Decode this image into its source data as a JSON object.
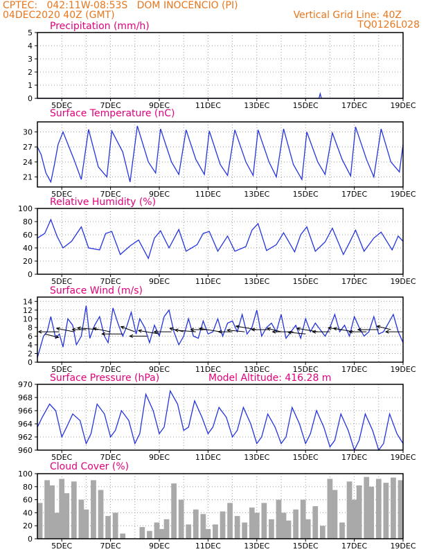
{
  "header": {
    "line1": "CPTEC:   042:11W-08:53S   DOM INOCENCIO (PI)",
    "line2": "04DEC2020 40Z (GMT)",
    "grid_note": "Vertical Grid Line: 40Z",
    "code": "TQ0126L028"
  },
  "colors": {
    "header": "#e8761c",
    "title": "#e0007a",
    "line": "#2233dd",
    "fill": "#a9a9a9"
  },
  "x_ticks": [
    "5DEC",
    "7DEC",
    "9DEC",
    "11DEC",
    "13DEC",
    "15DEC",
    "17DEC",
    "19DEC"
  ],
  "chart_data": [
    {
      "type": "line",
      "id": "precip",
      "title": "Precipitation (mm/h)",
      "ylim": [
        0,
        5
      ],
      "yticks": [
        "0",
        "1",
        "2",
        "3",
        "4",
        "5"
      ],
      "series": [
        {
          "x": [
            4,
            15.55,
            15.6,
            15.65,
            19
          ],
          "values": [
            0,
            0,
            0.35,
            0,
            0
          ]
        }
      ],
      "grid": "dotted"
    },
    {
      "type": "line",
      "id": "temp",
      "title": "Surface Temperature (nC)",
      "ylim": [
        19,
        32
      ],
      "yticks": [
        "21",
        "24",
        "27",
        "30"
      ],
      "series": [
        {
          "x": [
            4.0,
            4.15,
            4.35,
            4.55,
            4.7,
            4.85,
            5.05,
            5.5,
            5.8,
            6.1,
            6.5,
            6.85,
            7.05,
            7.5,
            7.8,
            8.1,
            8.55,
            8.85,
            9.05,
            9.5,
            9.8,
            10.1,
            10.5,
            10.85,
            11.05,
            11.5,
            11.8,
            12.1,
            12.55,
            12.85,
            13.05,
            13.5,
            13.8,
            14.1,
            14.5,
            14.85,
            15.05,
            15.5,
            15.8,
            16.1,
            16.5,
            16.85,
            17.05,
            17.5,
            17.8,
            18.1,
            18.5,
            18.85,
            19.0
          ],
          "values": [
            27.0,
            25.5,
            21.8,
            20.0,
            23.5,
            27.5,
            30.0,
            24.5,
            20.5,
            30.5,
            23.0,
            21.0,
            30.2,
            26.0,
            20.0,
            31.2,
            24.0,
            21.8,
            30.6,
            24.0,
            21.5,
            30.4,
            24.5,
            21.5,
            30.2,
            23.5,
            21.3,
            30.4,
            24.0,
            21.3,
            30.4,
            24.0,
            21.0,
            30.6,
            23.5,
            20.5,
            30.0,
            24.0,
            21.5,
            29.8,
            24.5,
            21.2,
            31.0,
            24.5,
            21.0,
            30.6,
            24.0,
            22.0,
            27.5
          ]
        }
      ],
      "grid": "dotted"
    },
    {
      "type": "line",
      "id": "rh",
      "title": "Relative Humidity (%)",
      "ylim": [
        0,
        100
      ],
      "yticks": [
        "0",
        "20",
        "40",
        "60",
        "80",
        "100"
      ],
      "series": [
        {
          "x": [
            4.0,
            4.3,
            4.55,
            4.8,
            5.05,
            5.4,
            5.8,
            6.1,
            6.55,
            6.8,
            7.05,
            7.4,
            7.8,
            8.15,
            8.55,
            8.8,
            9.05,
            9.4,
            9.8,
            10.1,
            10.55,
            10.8,
            11.05,
            11.4,
            11.8,
            12.1,
            12.55,
            12.8,
            13.05,
            13.4,
            13.8,
            14.1,
            14.55,
            14.8,
            15.05,
            15.4,
            15.8,
            16.1,
            16.55,
            16.8,
            17.05,
            17.4,
            17.8,
            18.1,
            18.55,
            18.8,
            19.0
          ],
          "values": [
            55,
            62,
            83,
            58,
            40,
            50,
            72,
            40,
            37,
            62,
            65,
            30,
            43,
            52,
            24,
            55,
            66,
            40,
            68,
            35,
            45,
            62,
            65,
            35,
            58,
            35,
            42,
            67,
            77,
            36,
            45,
            63,
            34,
            60,
            72,
            35,
            49,
            70,
            30,
            48,
            67,
            35,
            55,
            64,
            37,
            58,
            50
          ]
        }
      ],
      "grid": "dotted"
    },
    {
      "type": "line",
      "id": "wind",
      "title": "Surface Wind (m/s)",
      "ylim": [
        0,
        15
      ],
      "yticks": [
        "0",
        "2",
        "4",
        "6",
        "8",
        "10",
        "12",
        "14"
      ],
      "series": [
        {
          "x": [
            4.0,
            4.1,
            4.25,
            4.4,
            4.55,
            4.75,
            4.9,
            5.05,
            5.25,
            5.45,
            5.6,
            5.8,
            6.0,
            6.15,
            6.35,
            6.55,
            6.75,
            6.9,
            7.1,
            7.3,
            7.5,
            7.65,
            7.85,
            8.05,
            8.2,
            8.4,
            8.6,
            8.8,
            9.0,
            9.2,
            9.4,
            9.6,
            9.8,
            10.0,
            10.2,
            10.4,
            10.6,
            10.8,
            11.0,
            11.2,
            11.4,
            11.6,
            11.8,
            12.0,
            12.2,
            12.4,
            12.6,
            12.8,
            13.0,
            13.2,
            13.4,
            13.6,
            13.8,
            14.0,
            14.2,
            14.4,
            14.6,
            14.8,
            15.0,
            15.2,
            15.4,
            15.6,
            15.8,
            16.0,
            16.2,
            16.4,
            16.6,
            16.8,
            17.0,
            17.2,
            17.4,
            17.6,
            17.8,
            18.0,
            18.2,
            18.4,
            18.6,
            18.8,
            19.0
          ],
          "values": [
            1.0,
            3.0,
            6.0,
            7.0,
            10.5,
            5.5,
            6.5,
            3.5,
            10.0,
            8.5,
            4.0,
            6.0,
            13.0,
            5.5,
            8.5,
            10.5,
            6.0,
            4.5,
            12.5,
            9.0,
            6.0,
            8.0,
            11.5,
            6.5,
            10.0,
            8.0,
            4.5,
            8.5,
            6.0,
            10.5,
            12.0,
            7.0,
            4.0,
            6.0,
            10.0,
            6.0,
            5.5,
            9.5,
            6.5,
            7.0,
            10.0,
            6.0,
            9.0,
            9.5,
            7.0,
            11.0,
            6.5,
            8.0,
            12.0,
            6.0,
            8.0,
            9.0,
            7.0,
            11.0,
            5.5,
            7.0,
            8.5,
            5.5,
            10.0,
            7.0,
            9.0,
            7.5,
            6.0,
            8.0,
            11.0,
            7.0,
            8.5,
            6.0,
            10.5,
            8.0,
            6.0,
            7.0,
            10.5,
            6.5,
            7.0,
            9.0,
            11.0,
            7.0,
            4.5
          ]
        }
      ],
      "vectors": {
        "x": [
          4.3,
          4.9,
          5.5,
          6.0,
          6.5,
          7.0,
          7.5,
          8.0,
          8.5,
          9.0,
          9.5,
          10.0,
          10.5,
          11.0,
          11.5,
          12.0,
          12.5,
          13.0,
          13.5,
          14.0,
          14.5,
          15.0,
          15.5,
          16.0,
          16.5,
          17.0,
          17.5,
          18.0,
          18.5,
          19.0
        ],
        "u": [
          4,
          -6,
          -5,
          -4,
          -6,
          -5,
          -6,
          -4,
          -5,
          -6,
          -5,
          -4,
          -6,
          -5,
          -6,
          -4,
          -5,
          -6,
          -5,
          -4,
          -6,
          -5,
          -6,
          -5,
          -4,
          -6,
          -5,
          -6,
          -4,
          -5
        ],
        "v": [
          -1,
          0,
          1,
          0,
          0.5,
          1,
          0,
          1.5,
          0,
          1,
          0,
          1,
          0.5,
          0,
          1,
          0,
          0.5,
          1,
          0,
          1,
          0,
          0.5,
          1,
          0,
          0.5,
          1,
          0,
          0,
          1,
          0
        ],
        "at": [
          6.5,
          7.0,
          7.0,
          7.5,
          7.5,
          7.0,
          6.5,
          7.0,
          6.0,
          6.5,
          7.0,
          7.0,
          7.0,
          7.5,
          7.0,
          7.0,
          7.0,
          7.5,
          7.5,
          7.0,
          7.0,
          6.5,
          7.0,
          7.0,
          7.5,
          7.0,
          7.0,
          7.5,
          7.5,
          7.0
        ]
      },
      "grid": "dotted"
    },
    {
      "type": "line",
      "id": "pres",
      "title": "Surface Pressure (hPa)",
      "annotation": "Model Altitude: 416.28 m",
      "ylim": [
        960,
        970
      ],
      "yticks": [
        "960",
        "962",
        "964",
        "966",
        "968",
        "970"
      ],
      "series": [
        {
          "x": [
            4.0,
            4.2,
            4.5,
            4.75,
            5.0,
            5.2,
            5.45,
            5.75,
            6.0,
            6.2,
            6.45,
            6.75,
            7.0,
            7.2,
            7.45,
            7.75,
            8.0,
            8.2,
            8.45,
            8.75,
            9.0,
            9.2,
            9.45,
            9.75,
            10.0,
            10.2,
            10.45,
            10.75,
            11.0,
            11.2,
            11.45,
            11.75,
            12.0,
            12.2,
            12.45,
            12.75,
            13.0,
            13.2,
            13.45,
            13.75,
            14.0,
            14.2,
            14.45,
            14.75,
            15.0,
            15.2,
            15.45,
            15.75,
            16.0,
            16.2,
            16.45,
            16.75,
            17.0,
            17.2,
            17.45,
            17.75,
            18.0,
            18.2,
            18.45,
            18.75,
            19.0
          ],
          "values": [
            963.5,
            965.0,
            967.0,
            966.0,
            962.0,
            963.5,
            965.5,
            964.5,
            961.0,
            962.5,
            967.0,
            965.5,
            962.0,
            963.0,
            966.0,
            964.5,
            961.0,
            962.5,
            968.5,
            966.0,
            962.5,
            963.5,
            969.0,
            967.0,
            963.0,
            963.5,
            967.5,
            965.0,
            962.5,
            963.5,
            966.5,
            965.0,
            962.0,
            963.0,
            966.5,
            964.0,
            961.0,
            962.0,
            965.5,
            963.5,
            961.0,
            962.0,
            966.5,
            964.0,
            961.0,
            962.5,
            966.0,
            963.5,
            960.5,
            961.5,
            965.5,
            963.0,
            960.0,
            961.5,
            965.5,
            963.0,
            960.0,
            961.0,
            965.5,
            962.5,
            961.0
          ]
        }
      ],
      "grid": "dotted"
    },
    {
      "type": "bar",
      "id": "cloud",
      "title": "Cloud Cover (%)",
      "ylim": [
        0,
        100
      ],
      "yticks": [
        "0",
        "20",
        "40",
        "60",
        "80",
        "100"
      ],
      "series": [
        {
          "x": [
            4.1,
            4.4,
            4.6,
            4.8,
            5.0,
            5.2,
            5.5,
            5.8,
            6.0,
            6.3,
            6.6,
            6.9,
            7.2,
            7.5,
            8.0,
            8.3,
            8.6,
            8.9,
            9.1,
            9.3,
            9.6,
            9.9,
            10.2,
            10.5,
            10.8,
            11.0,
            11.3,
            11.6,
            11.9,
            12.2,
            12.5,
            12.8,
            13.0,
            13.3,
            13.6,
            13.9,
            14.1,
            14.3,
            14.6,
            14.9,
            15.1,
            15.4,
            15.7,
            16.0,
            16.2,
            16.5,
            16.8,
            17.0,
            17.2,
            17.5,
            17.7,
            18.0,
            18.3,
            18.6,
            18.9
          ],
          "values": [
            55,
            90,
            82,
            40,
            92,
            70,
            88,
            60,
            45,
            90,
            75,
            35,
            40,
            8,
            0,
            18,
            12,
            25,
            15,
            30,
            85,
            60,
            22,
            45,
            38,
            15,
            22,
            42,
            55,
            35,
            25,
            48,
            40,
            55,
            30,
            60,
            40,
            28,
            45,
            60,
            30,
            50,
            20,
            92,
            75,
            25,
            88,
            60,
            82,
            95,
            80,
            92,
            86,
            94,
            90
          ]
        }
      ],
      "grid": "dotted"
    }
  ]
}
